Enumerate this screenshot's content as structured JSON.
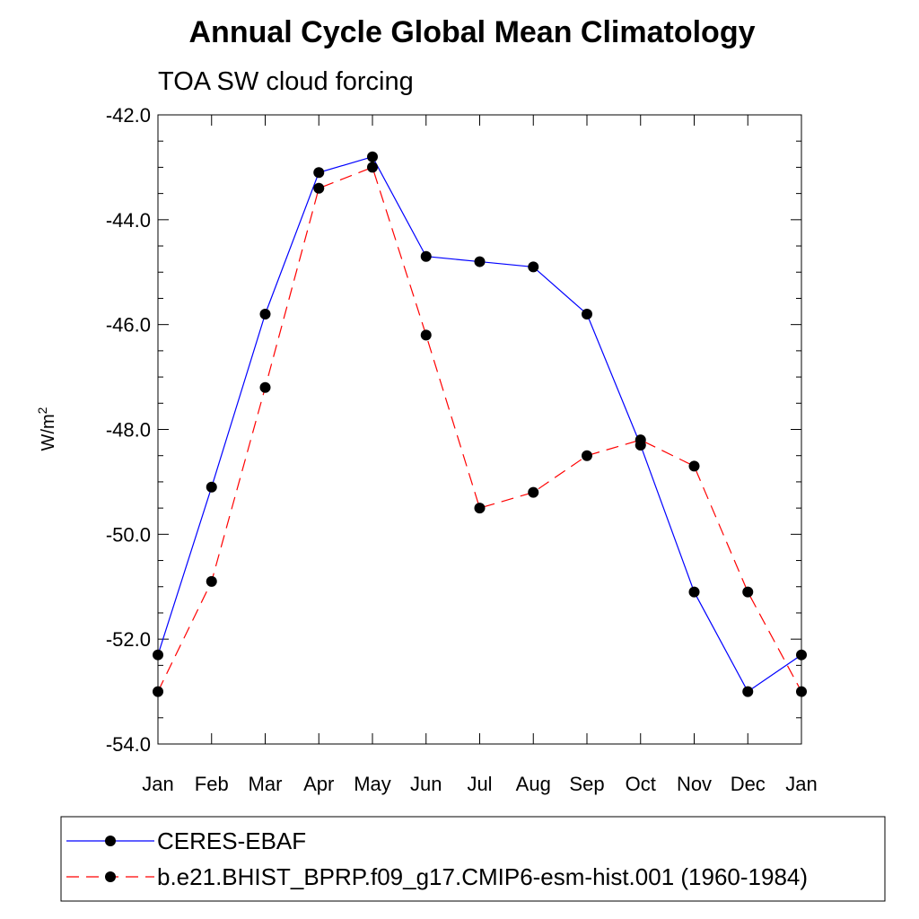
{
  "chart_data": {
    "type": "line",
    "title": "Annual Cycle Global Mean Climatology",
    "subtitle": "TOA SW cloud forcing",
    "ylabel": "W/m",
    "ylabel_superscript": "2",
    "categories": [
      "Jan",
      "Feb",
      "Mar",
      "Apr",
      "May",
      "Jun",
      "Jul",
      "Aug",
      "Sep",
      "Oct",
      "Nov",
      "Dec",
      "Jan"
    ],
    "ylim": [
      -54.0,
      -42.0
    ],
    "yticks": [
      "-54.0",
      "-52.0",
      "-50.0",
      "-48.0",
      "-46.0",
      "-44.0",
      "-42.0"
    ],
    "grid": false,
    "legend_position": "bottom",
    "series": [
      {
        "name": "CERES-EBAF",
        "color": "#0000ff",
        "dash": "solid",
        "values": [
          -52.3,
          -49.1,
          -45.8,
          -43.1,
          -42.8,
          -44.7,
          -44.8,
          -44.9,
          -45.8,
          -48.3,
          -51.1,
          -53.0,
          -52.3
        ]
      },
      {
        "name": "b.e21.BHIST_BPRP.f09_g17.CMIP6-esm-hist.001 (1960-1984)",
        "color": "#ff0000",
        "dash": "dashed",
        "values": [
          -53.0,
          -50.9,
          -47.2,
          -43.4,
          -43.0,
          -46.2,
          -49.5,
          -49.2,
          -48.5,
          -48.2,
          -48.7,
          -51.1,
          -53.0
        ]
      }
    ]
  }
}
